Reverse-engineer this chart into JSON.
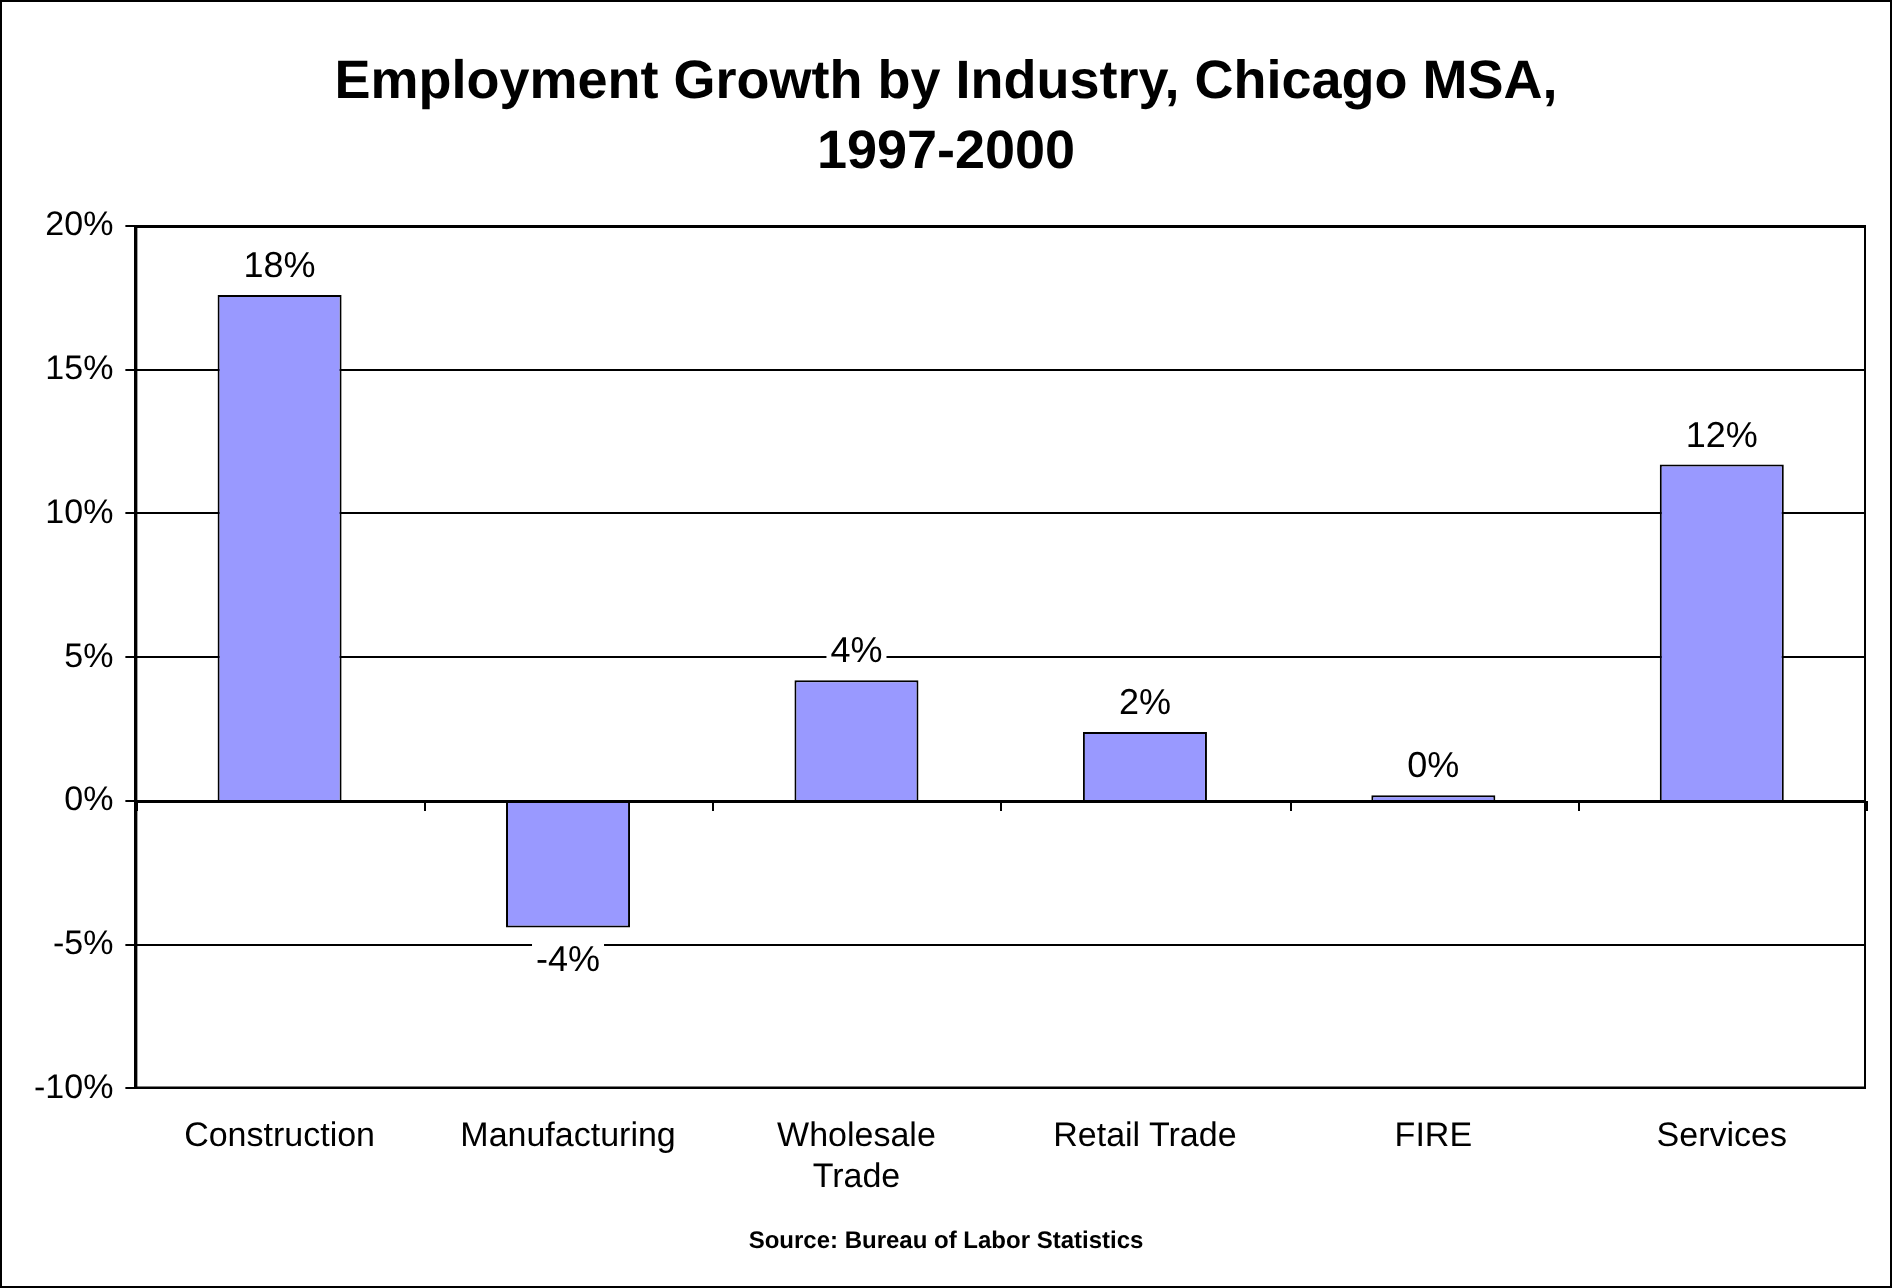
{
  "chart_data": {
    "type": "bar",
    "title": "Employment Growth by Industry, Chicago MSA, 1997-2000",
    "categories": [
      "Construction",
      "Manufacturing",
      "Wholesale Trade",
      "Retail Trade",
      "FIRE",
      "Services"
    ],
    "values": [
      17.6,
      -4.4,
      4.2,
      2.4,
      0.2,
      11.7
    ],
    "value_labels": [
      "18%",
      "-4%",
      "4%",
      "2%",
      "0%",
      "12%"
    ],
    "color": "#9999ff",
    "ylim": [
      -10,
      20
    ],
    "yticks": [
      {
        "value": -10,
        "label": "-10%"
      },
      {
        "value": -5,
        "label": "-5%"
      },
      {
        "value": 0,
        "label": "0%"
      },
      {
        "value": 5,
        "label": "5%"
      },
      {
        "value": 10,
        "label": "10%"
      },
      {
        "value": 15,
        "label": "15%"
      },
      {
        "value": 20,
        "label": "20%"
      }
    ],
    "grid": "y",
    "legend": false,
    "annotations": [
      "Source: Bureau of Labor Statistics"
    ]
  }
}
